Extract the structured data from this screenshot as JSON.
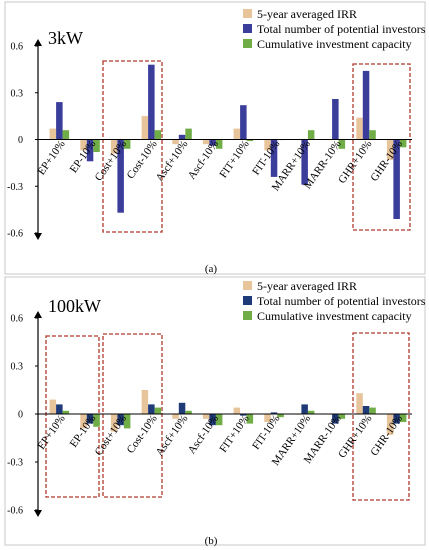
{
  "chart_data": [
    {
      "type": "bar",
      "title": "3kW",
      "caption": "(a)",
      "ylim": [
        -0.6,
        0.6
      ],
      "yticks": [
        "0.6",
        "0.3",
        "0",
        "-0.3",
        "-0.6"
      ],
      "categories": [
        "EP+10%",
        "EP-10%",
        "Cost+10%",
        "Cost-10%",
        "Ascf+10%",
        "Ascf-10%",
        "FIT+10%",
        "FIT-10%",
        "MARR+10%",
        "MARR-10%",
        "GHR+10%",
        "GHR-10%"
      ],
      "series": [
        {
          "name": "5-year averaged IRR",
          "color": "#E8C49A",
          "values": [
            0.07,
            -0.07,
            -0.09,
            0.15,
            -0.03,
            -0.03,
            0.07,
            -0.07,
            0.0,
            0.0,
            0.14,
            -0.13
          ]
        },
        {
          "name": "Total number of potential investors",
          "color": "#3A3D9A",
          "values": [
            0.24,
            -0.14,
            -0.47,
            0.48,
            0.03,
            -0.04,
            0.22,
            -0.24,
            -0.29,
            0.26,
            0.44,
            -0.51
          ]
        },
        {
          "name": "Cumulative investment capacity",
          "color": "#70AD47",
          "values": [
            0.06,
            -0.08,
            -0.06,
            0.06,
            0.07,
            -0.06,
            -0.01,
            0.0,
            0.06,
            -0.06,
            0.06,
            -0.05
          ]
        }
      ],
      "grid": false,
      "legend": "top-right"
    },
    {
      "type": "bar",
      "title": "100kW",
      "caption": "(b)",
      "ylim": [
        -0.6,
        0.6
      ],
      "yticks": [
        "0.6",
        "0.3",
        "0",
        "-0.3",
        "-0.6"
      ],
      "categories": [
        "EP+10%",
        "EP-10%",
        "Cost+10%",
        "Cost-10%",
        "Ascf+10%",
        "Ascf-10%",
        "FIT+10%",
        "FIT-10%",
        "MARR+10%",
        "MARR-10%",
        "GHR+10%",
        "GHR-10%"
      ],
      "series": [
        {
          "name": "5-year averaged IRR",
          "color": "#E8C49A",
          "values": [
            0.09,
            -0.09,
            -0.11,
            0.15,
            -0.03,
            -0.03,
            0.04,
            -0.05,
            0.0,
            0.0,
            0.13,
            -0.13
          ]
        },
        {
          "name": "Total number of potential investors",
          "color": "#1F3A78",
          "values": [
            0.06,
            -0.06,
            -0.07,
            0.06,
            0.07,
            -0.07,
            -0.01,
            0.01,
            0.06,
            -0.06,
            0.05,
            -0.06
          ]
        },
        {
          "name": "Cumulative investment capacity",
          "color": "#70AD47",
          "values": [
            0.02,
            -0.08,
            -0.09,
            0.04,
            0.02,
            -0.07,
            -0.06,
            -0.02,
            0.02,
            -0.03,
            0.04,
            -0.05
          ]
        }
      ],
      "grid": false,
      "legend": "top-right"
    }
  ]
}
